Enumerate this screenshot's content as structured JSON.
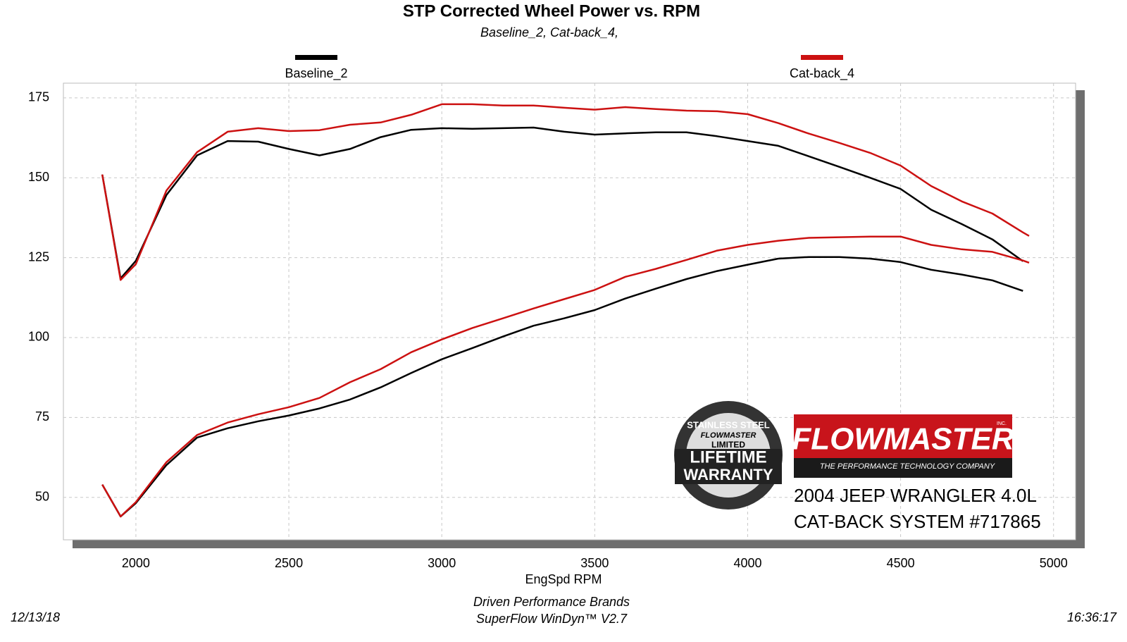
{
  "chart_data": {
    "type": "line",
    "title": "STP Corrected Wheel Power vs. RPM",
    "subtitle": "Baseline_2, Cat-back_4,",
    "x_label": "EngSpd  RPM",
    "x": [
      1890,
      1950,
      2000,
      2100,
      2200,
      2300,
      2400,
      2500,
      2600,
      2700,
      2800,
      2900,
      3000,
      3100,
      3200,
      3300,
      3400,
      3500,
      3600,
      3700,
      3800,
      3900,
      4000,
      4100,
      4200,
      4300,
      4400,
      4500,
      4600,
      4700,
      4800,
      4900,
      4920
    ],
    "series": [
      {
        "name": "Baseline_2",
        "color": "#000000",
        "values": [
          151,
          118.5,
          124,
          144.6,
          157,
          161.5,
          161.3,
          159,
          157,
          159,
          162.7,
          165,
          165.5,
          165.3,
          165.5,
          165.7,
          164.4,
          163.5,
          163.9,
          164.2,
          164.2,
          163,
          161.5,
          160,
          156.7,
          153.4,
          150,
          146.5,
          140,
          135.5,
          130.7,
          123.9,
          null
        ],
        "values2": [
          54,
          44,
          48.2,
          60.1,
          68.7,
          71.6,
          73.8,
          75.6,
          77.8,
          80.6,
          84.4,
          88.9,
          93.2,
          96.7,
          100.3,
          103.7,
          106,
          108.6,
          112.2,
          115.3,
          118.3,
          120.8,
          122.8,
          124.7,
          125.2,
          125.2,
          124.7,
          123.6,
          121.2,
          119.7,
          117.9,
          114.6,
          null
        ]
      },
      {
        "name": "Cat-back_4",
        "color": "#cc1111",
        "values": [
          151,
          118,
          123,
          146,
          158,
          164.4,
          165.5,
          164.6,
          164.9,
          166.6,
          167.3,
          169.7,
          173,
          173,
          172.6,
          172.6,
          171.9,
          171.3,
          172.1,
          171.5,
          171,
          170.8,
          169.9,
          167.1,
          163.8,
          160.9,
          157.8,
          153.8,
          147.4,
          142.6,
          138.8,
          132.9,
          131.8
        ],
        "values2": [
          54,
          44,
          48.5,
          61,
          69.5,
          73.4,
          76,
          78.2,
          81.1,
          86,
          90.1,
          95.4,
          99.4,
          103,
          106,
          109.1,
          112,
          114.9,
          119,
          121.5,
          124.3,
          127.2,
          129,
          130.3,
          131.2,
          131.4,
          131.6,
          131.6,
          129,
          127.6,
          126.8,
          124.1,
          123.4
        ]
      }
    ],
    "xlim": [
      1763,
      5072
    ],
    "ylim": [
      36.7,
      179.6
    ],
    "xticks": [
      2000,
      2500,
      3000,
      3500,
      4000,
      4500,
      5000
    ],
    "yticks": [
      50,
      75,
      100,
      125,
      150,
      175
    ],
    "grid": true,
    "footer": {
      "date": "12/13/18",
      "company": "Driven Performance Brands",
      "software": "SuperFlow WinDyn™ V2.7",
      "time": "16:36:17"
    },
    "badge": {
      "top": "STAINLESS STEEL",
      "brand": "FLOWMASTER",
      "limited": "LIMITED",
      "line1": "LIFETIME",
      "line2": "WARRANTY"
    },
    "logo": {
      "brand": "FLOWMASTER",
      "inc": "INC.",
      "tagline": "THE PERFORMANCE TECHNOLOGY COMPANY"
    },
    "annotations": [
      "2004 JEEP WRANGLER 4.0L",
      "CAT-BACK SYSTEM #717865"
    ]
  }
}
